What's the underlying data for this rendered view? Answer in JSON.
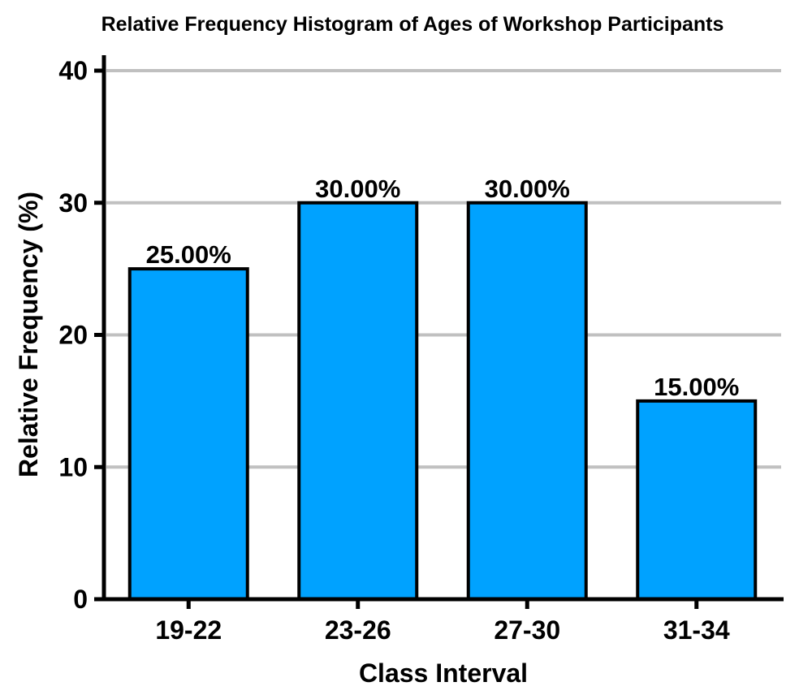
{
  "chart_data": {
    "type": "bar",
    "title": "Relative Frequency Histogram of Ages of Workshop Participants",
    "xlabel": "Class Interval",
    "ylabel": "Relative Frequency (%)",
    "categories": [
      "19-22",
      "23-26",
      "27-30",
      "31-34"
    ],
    "values": [
      25,
      30,
      30,
      15
    ],
    "data_labels": [
      "25.00%",
      "30.00%",
      "30.00%",
      "15.00%"
    ],
    "ylim": [
      0,
      40
    ],
    "yticks": [
      0,
      10,
      20,
      30,
      40
    ],
    "ytick_labels": [
      "0",
      "10",
      "20",
      "30",
      "40"
    ],
    "grid": "horizontal",
    "legend": "none",
    "colors": {
      "bar": "#00a2ff",
      "outline": "#000000",
      "grid": "#c0c0c0"
    }
  }
}
